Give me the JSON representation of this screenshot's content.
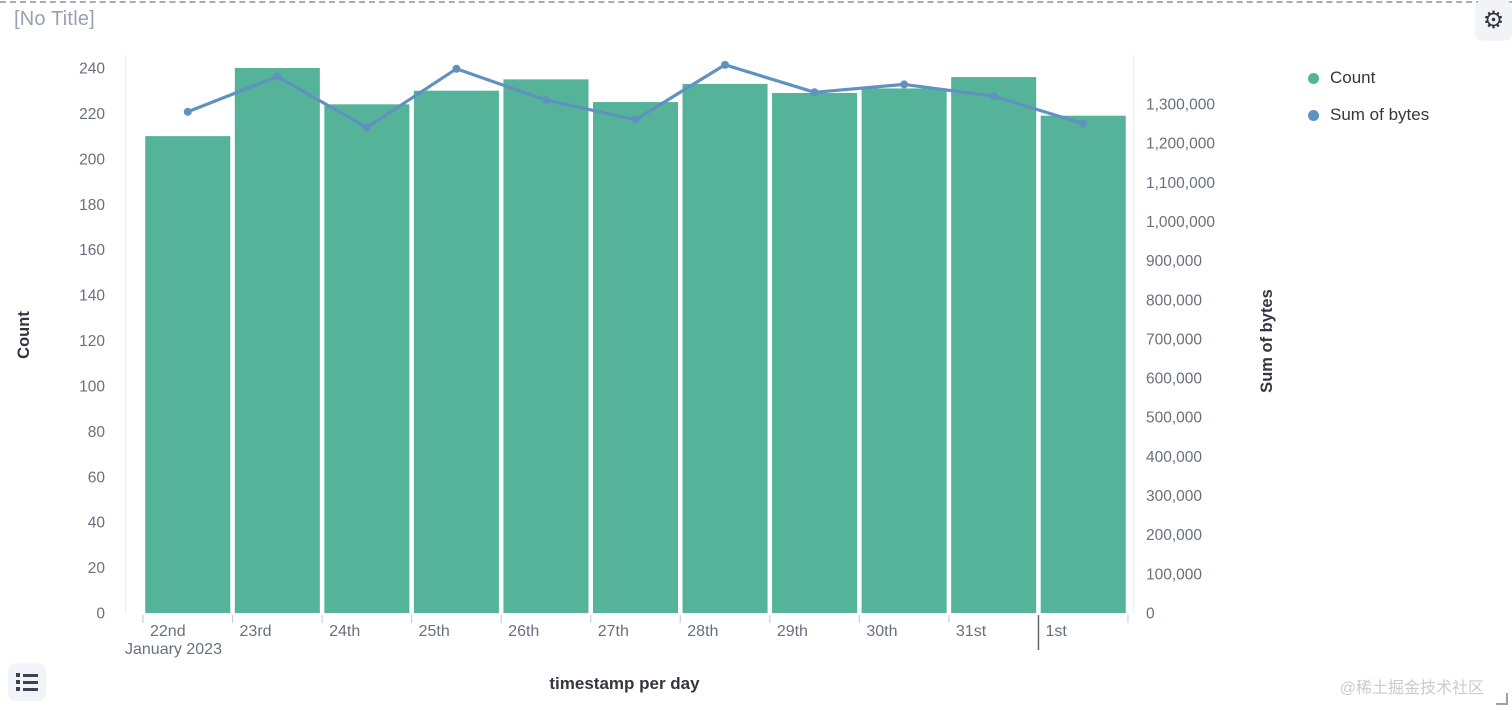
{
  "panel": {
    "title": "[No Title]"
  },
  "toolbar": {
    "gear_icon": "⚙"
  },
  "legend": {
    "position": "right",
    "items": [
      {
        "label": "Count",
        "color": "#54B399"
      },
      {
        "label": "Sum of bytes",
        "color": "#6092C0"
      }
    ]
  },
  "chart_data": {
    "type": "bar",
    "subtype": "bar-line-combo",
    "categories": [
      "22nd",
      "23rd",
      "24th",
      "25th",
      "26th",
      "27th",
      "28th",
      "29th",
      "30th",
      "31st",
      "1st"
    ],
    "series": [
      {
        "name": "Count",
        "type": "bar",
        "axis": "left",
        "color": "#54B399",
        "values": [
          210,
          240,
          224,
          230,
          235,
          225,
          233,
          229,
          231,
          236,
          219
        ]
      },
      {
        "name": "Sum of bytes",
        "type": "line",
        "axis": "right",
        "color": "#6092C0",
        "values": [
          1280000,
          1370000,
          1240000,
          1390000,
          1310000,
          1260000,
          1400000,
          1330000,
          1350000,
          1320000,
          1250000
        ]
      }
    ],
    "x_axis": {
      "title": "timestamp per day",
      "month_label": "January 2023",
      "month_tick_boundary": 10
    },
    "y_axis_left": {
      "title": "Count",
      "min": 0,
      "max": 240,
      "tick_step": 20
    },
    "y_axis_right": {
      "title": "Sum of bytes",
      "min": 0,
      "max": 1300000,
      "tick_step": 100000
    },
    "grid": "off",
    "colors": {
      "tick_label": "#69707d",
      "axis_title": "#343741",
      "tick_mark": "#c9cfd8",
      "month_tick_mark": "#5f6773",
      "axis_line": "#eceef2"
    }
  },
  "footer": {
    "watermark": "@稀土掘金技术社区"
  }
}
